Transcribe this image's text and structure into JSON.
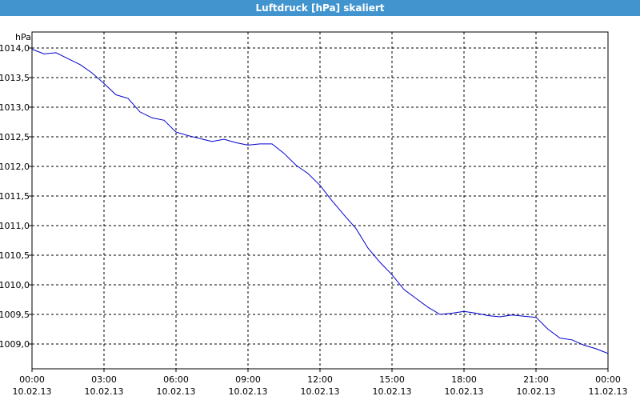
{
  "chart_data": {
    "type": "line",
    "title": "Luftdruck [hPa] skaliert",
    "ylabel": "hPa",
    "ylim": [
      1008.6,
      1014.0
    ],
    "xlim": [
      "2013-02-10 00:00",
      "2013-02-11 00:00"
    ],
    "grid": true,
    "y_ticks": [
      "1014,0",
      "1013,5",
      "1013,0",
      "1012,5",
      "1012,0",
      "1011,5",
      "1011,0",
      "1010,5",
      "1010,0",
      "1009,5",
      "1009,0"
    ],
    "y_tick_values": [
      1014.0,
      1013.5,
      1013.0,
      1012.5,
      1012.0,
      1011.5,
      1011.0,
      1010.5,
      1010.0,
      1009.5,
      1009.0
    ],
    "x_ticks": [
      {
        "time": "00:00",
        "date": "10.02.13"
      },
      {
        "time": "03:00",
        "date": "10.02.13"
      },
      {
        "time": "06:00",
        "date": "10.02.13"
      },
      {
        "time": "09:00",
        "date": "10.02.13"
      },
      {
        "time": "12:00",
        "date": "10.02.13"
      },
      {
        "time": "15:00",
        "date": "10.02.13"
      },
      {
        "time": "18:00",
        "date": "10.02.13"
      },
      {
        "time": "21:00",
        "date": "10.02.13"
      },
      {
        "time": "00:00",
        "date": "11.02.13"
      }
    ],
    "series": [
      {
        "color": "#0000cc",
        "x": [
          "00:00",
          "00:30",
          "01:00",
          "01:30",
          "02:00",
          "02:30",
          "03:00",
          "03:30",
          "04:00",
          "04:30",
          "05:00",
          "05:30",
          "06:00",
          "06:30",
          "07:00",
          "07:30",
          "08:00",
          "08:30",
          "09:00",
          "09:30",
          "10:00",
          "10:30",
          "11:00",
          "11:30",
          "12:00",
          "12:30",
          "13:00",
          "13:30",
          "14:00",
          "14:30",
          "15:00",
          "15:30",
          "16:00",
          "16:30",
          "17:00",
          "17:30",
          "18:00",
          "18:30",
          "19:00",
          "19:30",
          "20:00",
          "20:30",
          "21:00",
          "21:30",
          "22:00",
          "22:30",
          "23:00",
          "23:30",
          "23:45",
          "24:00"
        ],
        "values": [
          1013.98,
          1013.9,
          1013.92,
          1013.82,
          1013.72,
          1013.58,
          1013.4,
          1013.21,
          1013.15,
          1012.92,
          1012.82,
          1012.78,
          1012.58,
          1012.52,
          1012.47,
          1012.42,
          1012.46,
          1012.4,
          1012.36,
          1012.38,
          1012.38,
          1012.22,
          1012.02,
          1011.88,
          1011.68,
          1011.42,
          1011.18,
          1010.95,
          1010.62,
          1010.38,
          1010.17,
          1009.92,
          1009.77,
          1009.62,
          1009.5,
          1009.52,
          1009.55,
          1009.52,
          1009.48,
          1009.46,
          1009.49,
          1009.47,
          1009.45,
          1009.25,
          1009.1,
          1009.07,
          1008.98,
          1008.92,
          1008.88,
          1008.84
        ]
      }
    ]
  }
}
